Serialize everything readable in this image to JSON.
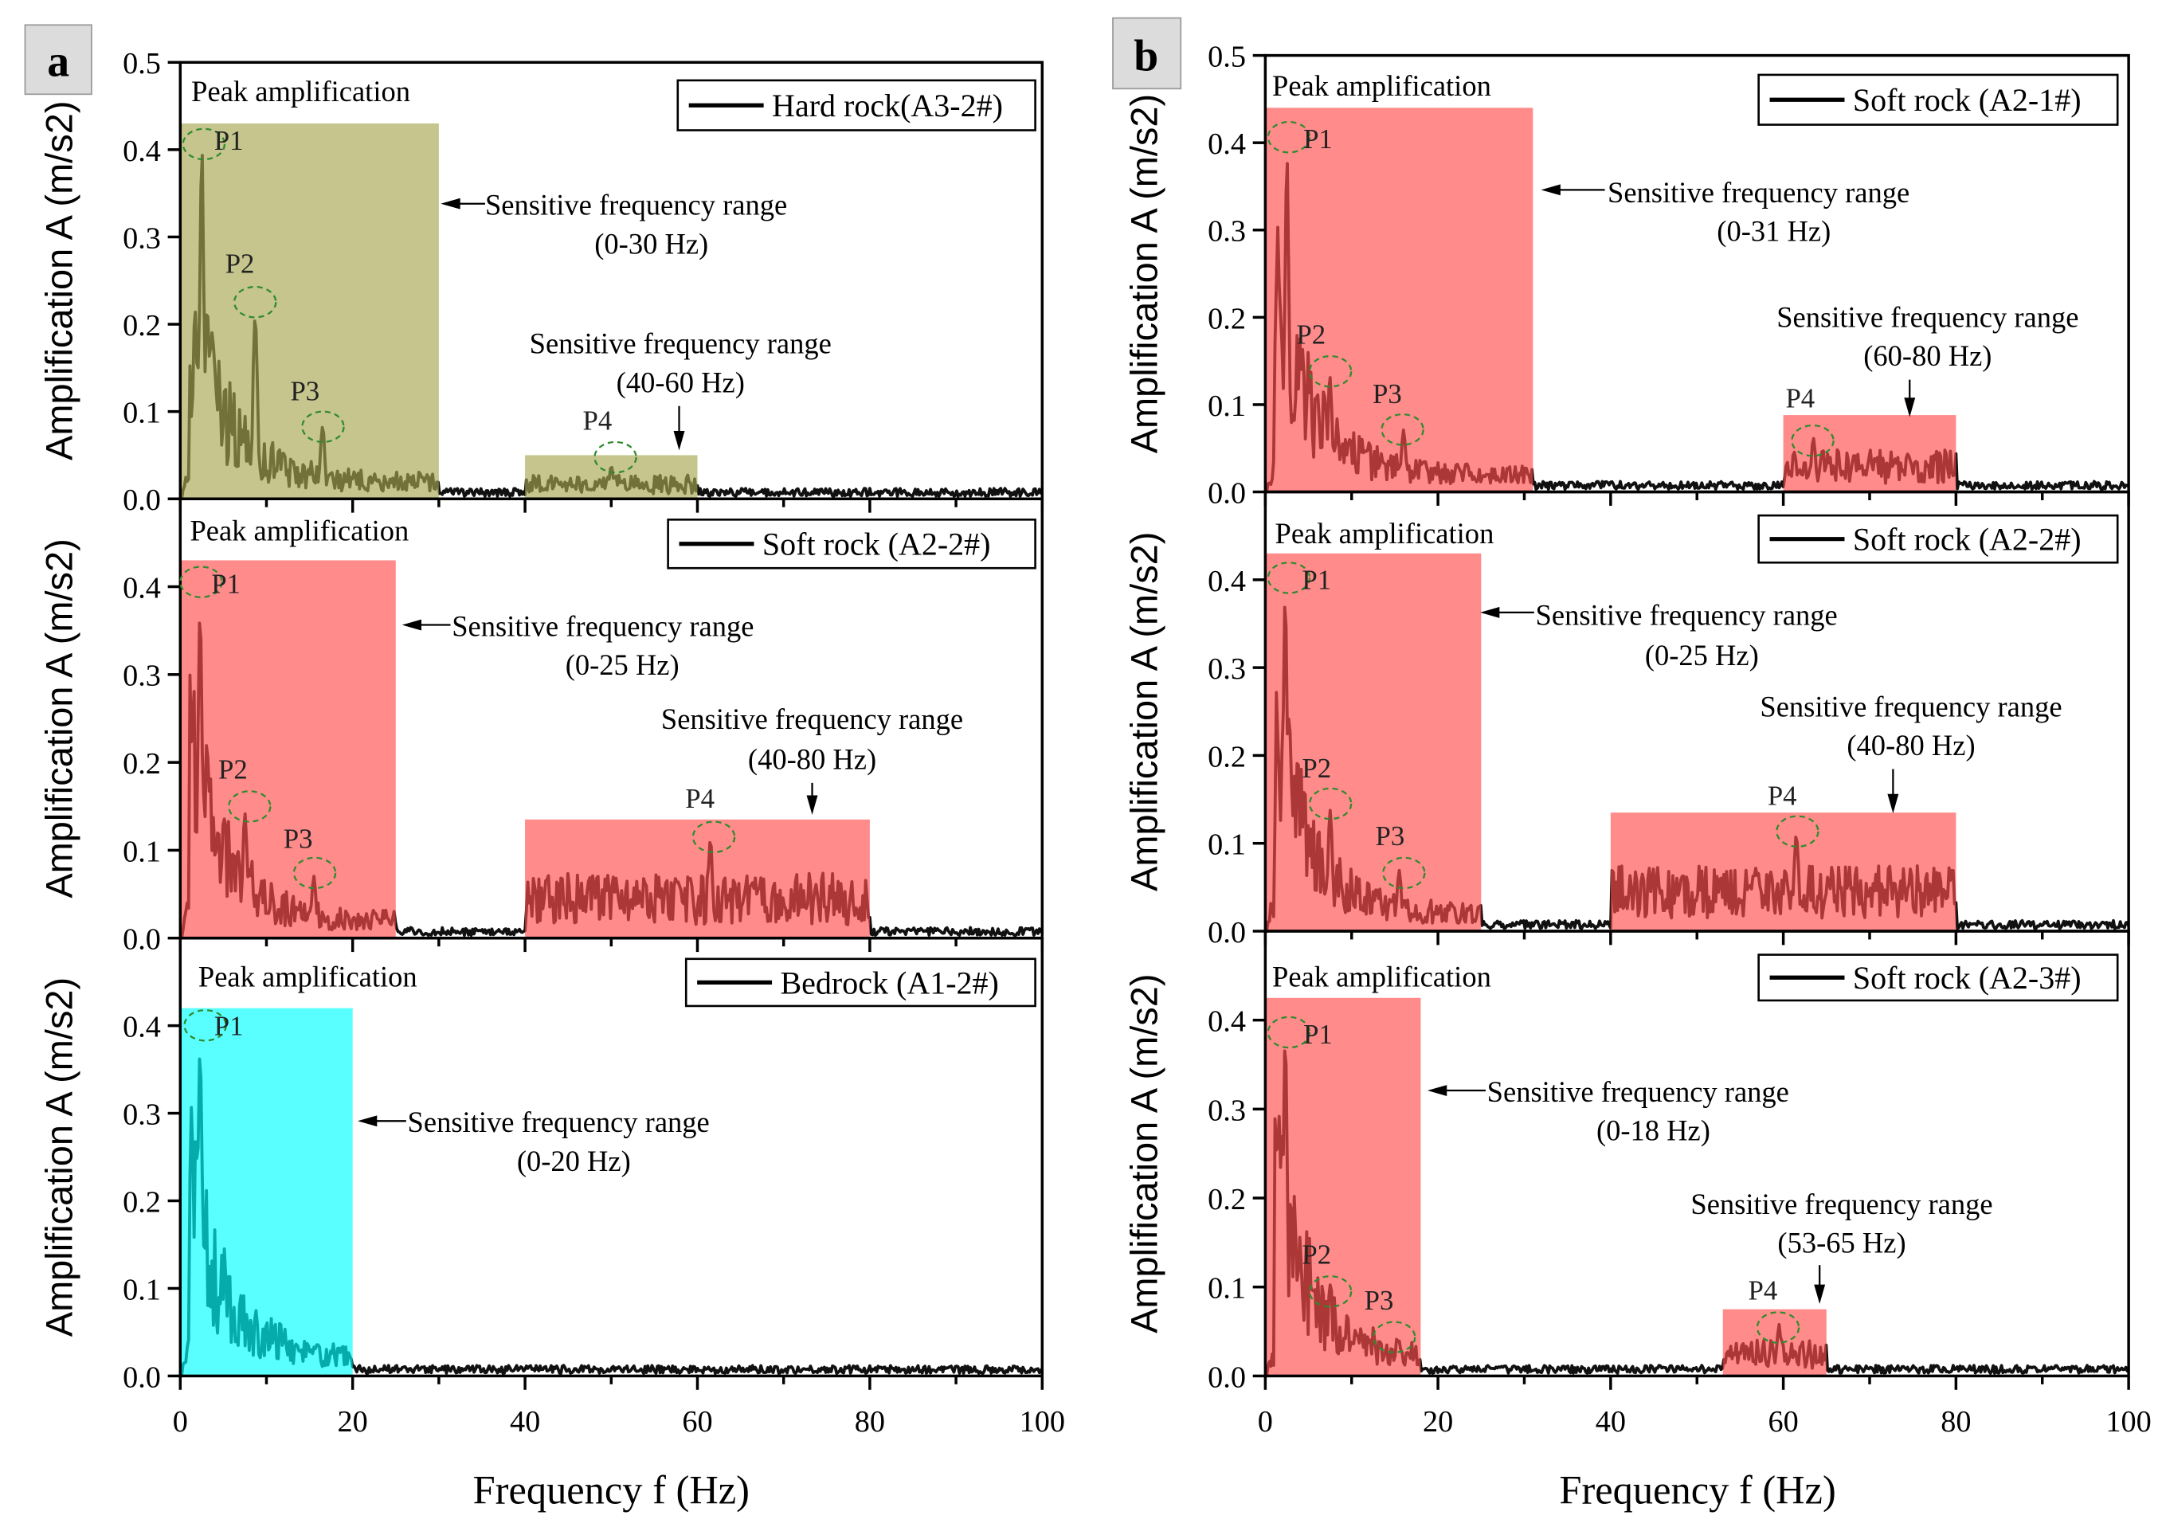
{
  "figure": {
    "x_axis_label": "Frequency f (Hz)",
    "x_ticks": [
      "0",
      "20",
      "40",
      "60",
      "80",
      "100"
    ],
    "panel_labels": [
      "a",
      "b"
    ]
  },
  "chart_data": [
    {
      "type": "line",
      "panel": "a",
      "position": "top",
      "legend": "Hard rock(A3-2#)",
      "ylabel": "Amplification A (m/s2)",
      "xlabel": "Frequency f (Hz)",
      "xlim": [
        0,
        100
      ],
      "ylim": [
        0,
        0.5
      ],
      "y_ticks": [
        "0.0",
        "0.1",
        "0.2",
        "0.3",
        "0.4",
        "0.5"
      ],
      "shade_color": "#a6a650",
      "peak_label": "Peak amplification",
      "sensitive_ranges": [
        {
          "from": 0,
          "to": 30,
          "height": 0.43,
          "label": "Sensitive frequency range",
          "range_text": "(0-30 Hz)"
        },
        {
          "from": 40,
          "to": 60,
          "height": 0.05,
          "label": "Sensitive frequency range",
          "range_text": "(40-60 Hz)"
        }
      ],
      "peaks": [
        {
          "name": "P1",
          "f": 2.5,
          "A": 0.41
        },
        {
          "name": "P2",
          "f": 8.7,
          "A": 0.23
        },
        {
          "name": "P3",
          "f": 16.5,
          "A": 0.09
        },
        {
          "name": "P4",
          "f": 50,
          "A": 0.04
        }
      ]
    },
    {
      "type": "line",
      "panel": "a",
      "position": "middle",
      "legend": "Soft rock (A2-2#)",
      "ylabel": "Amplification A (m/s2)",
      "xlabel": "Frequency f (Hz)",
      "xlim": [
        0,
        100
      ],
      "ylim": [
        0,
        0.5
      ],
      "y_ticks": [
        "0.0",
        "0.1",
        "0.2",
        "0.3",
        "0.4"
      ],
      "shade_color": "#ff4d4d",
      "peak_label": "Peak amplification",
      "sensitive_ranges": [
        {
          "from": 0,
          "to": 25,
          "height": 0.43,
          "label": "Sensitive frequency range",
          "range_text": "(0-25 Hz)"
        },
        {
          "from": 40,
          "to": 80,
          "height": 0.135,
          "label": "Sensitive frequency range",
          "range_text": "(40-80 Hz)"
        }
      ],
      "peaks": [
        {
          "name": "P1",
          "f": 2.3,
          "A": 0.405
        },
        {
          "name": "P2",
          "f": 7.5,
          "A": 0.15
        },
        {
          "name": "P3",
          "f": 15.5,
          "A": 0.075
        },
        {
          "name": "P4",
          "f": 61.5,
          "A": 0.12
        }
      ]
    },
    {
      "type": "line",
      "panel": "a",
      "position": "bottom",
      "legend": "Bedrock (A1-2#)",
      "ylabel": "Amplification A (m/s2)",
      "xlabel": "Frequency f (Hz)",
      "xlim": [
        0,
        100
      ],
      "ylim": [
        0,
        0.5
      ],
      "y_ticks": [
        "0.0",
        "0.1",
        "0.2",
        "0.3",
        "0.4"
      ],
      "shade_color": "#00ffff",
      "peak_label": "Peak amplification",
      "sensitive_ranges": [
        {
          "from": 0,
          "to": 20,
          "height": 0.42,
          "label": "Sensitive frequency range",
          "range_text": "(0-20 Hz)"
        }
      ],
      "peaks": [
        {
          "name": "P1",
          "f": 2.3,
          "A": 0.4
        }
      ]
    },
    {
      "type": "line",
      "panel": "b",
      "position": "top",
      "legend": "Soft rock (A2-1#)",
      "ylabel": "Amplification A (m/s2)",
      "xlabel": "Frequency f (Hz)",
      "xlim": [
        0,
        100
      ],
      "ylim": [
        0,
        0.5
      ],
      "y_ticks": [
        "0.0",
        "0.1",
        "0.2",
        "0.3",
        "0.4",
        "0.5"
      ],
      "shade_color": "#ff4d4d",
      "peak_label": "Peak amplification",
      "sensitive_ranges": [
        {
          "from": 0,
          "to": 31,
          "height": 0.44,
          "label": "Sensitive frequency range",
          "range_text": "(0-31 Hz)"
        },
        {
          "from": 60,
          "to": 80,
          "height": 0.088,
          "label": "Sensitive frequency range",
          "range_text": "(60-80 Hz)"
        }
      ],
      "peaks": [
        {
          "name": "P1",
          "f": 2.5,
          "A": 0.405
        },
        {
          "name": "P2",
          "f": 7.5,
          "A": 0.14
        },
        {
          "name": "P3",
          "f": 16,
          "A": 0.075
        },
        {
          "name": "P4",
          "f": 63.5,
          "A": 0.065
        }
      ]
    },
    {
      "type": "line",
      "panel": "b",
      "position": "middle",
      "legend": "Soft rock (A2-2#)",
      "ylabel": "Amplification A (m/s2)",
      "xlabel": "Frequency f (Hz)",
      "xlim": [
        0,
        100
      ],
      "ylim": [
        0,
        0.5
      ],
      "y_ticks": [
        "0.0",
        "0.1",
        "0.2",
        "0.3",
        "0.4"
      ],
      "shade_color": "#ff4d4d",
      "peak_label": "Peak amplification",
      "sensitive_ranges": [
        {
          "from": 0,
          "to": 25,
          "height": 0.43,
          "label": "Sensitive frequency range",
          "range_text": "(0-25 Hz)"
        },
        {
          "from": 40,
          "to": 80,
          "height": 0.135,
          "label": "Sensitive frequency range",
          "range_text": "(40-80 Hz)"
        }
      ],
      "peaks": [
        {
          "name": "P1",
          "f": 2.3,
          "A": 0.405
        },
        {
          "name": "P2",
          "f": 7.5,
          "A": 0.15
        },
        {
          "name": "P3",
          "f": 15.5,
          "A": 0.075
        },
        {
          "name": "P4",
          "f": 61.5,
          "A": 0.12
        }
      ]
    },
    {
      "type": "line",
      "panel": "b",
      "position": "bottom",
      "legend": "Soft rock (A2-3#)",
      "ylabel": "Amplification A (m/s2)",
      "xlabel": "Frequency f (Hz)",
      "xlim": [
        0,
        100
      ],
      "ylim": [
        0,
        0.5
      ],
      "y_ticks": [
        "0.0",
        "0.1",
        "0.2",
        "0.3",
        "0.4"
      ],
      "shade_color": "#ff4d4d",
      "peak_label": "Peak amplification",
      "sensitive_ranges": [
        {
          "from": 0,
          "to": 18,
          "height": 0.425,
          "label": "Sensitive frequency range",
          "range_text": "(0-18 Hz)"
        },
        {
          "from": 53,
          "to": 65,
          "height": 0.075,
          "label": "Sensitive frequency range",
          "range_text": "(53-65 Hz)"
        }
      ],
      "peaks": [
        {
          "name": "P1",
          "f": 2.3,
          "A": 0.4
        },
        {
          "name": "P2",
          "f": 7.5,
          "A": 0.105
        },
        {
          "name": "P3",
          "f": 15.5,
          "A": 0.04
        },
        {
          "name": "P4",
          "f": 59.5,
          "A": 0.06
        }
      ]
    }
  ]
}
